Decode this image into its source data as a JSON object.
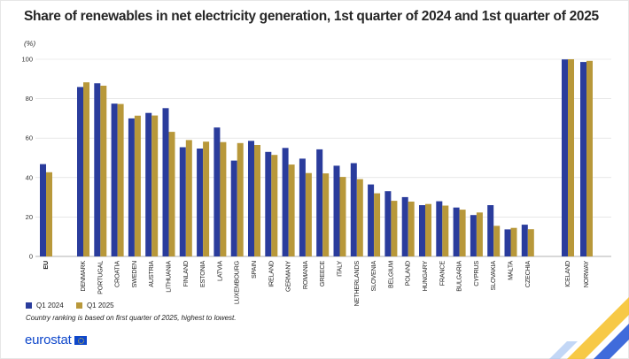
{
  "title": "Share of renewables in net electricity generation, 1st quarter of 2024 and 1st quarter of 2025",
  "unit": "(%)",
  "legend": {
    "q1_2024": "Q1 2024",
    "q1_2025": "Q1 2025"
  },
  "note": "Country ranking is based on first quarter of 2025, highest to lowest.",
  "logo": "eurostat",
  "colors": {
    "q1_2024": "#2a3c9c",
    "q1_2025": "#b8983a",
    "grid": "#d9d9d9"
  },
  "chart_data": {
    "type": "bar",
    "ylim": [
      0,
      100
    ],
    "yticks": [
      0,
      20,
      40,
      60,
      80,
      100
    ],
    "grid": true,
    "categories": [
      "EU",
      "DENMARK",
      "PORTUGAL",
      "CROATIA",
      "SWEDEN",
      "AUSTRIA",
      "LITHUANIA",
      "FINLAND",
      "ESTONIA",
      "LATVIA",
      "LUXEMBOURG",
      "SPAIN",
      "IRELAND",
      "GERMANY",
      "ROMANIA",
      "GREECE",
      "ITALY",
      "NETHERLANDS",
      "SLOVENIA",
      "BELGIUM",
      "POLAND",
      "HUNGARY",
      "FRANCE",
      "BULGARIA",
      "CYPRUS",
      "SLOVAKIA",
      "MALTA",
      "CZECHIA",
      "ICELAND",
      "NORWAY"
    ],
    "series": [
      {
        "name": "Q1 2024",
        "values": [
          46.8,
          85.9,
          87.8,
          77.5,
          70.0,
          72.8,
          75.2,
          55.4,
          54.7,
          65.4,
          48.6,
          58.6,
          53.0,
          55.0,
          49.6,
          54.3,
          46.0,
          47.3,
          36.5,
          33.1,
          30.1,
          26.0,
          28.0,
          24.8,
          21.0,
          26.0,
          13.7,
          16.1,
          99.9,
          98.6
        ]
      },
      {
        "name": "Q1 2025",
        "values": [
          42.7,
          88.3,
          86.6,
          77.3,
          71.4,
          71.5,
          63.2,
          59.0,
          58.2,
          58.0,
          57.5,
          56.5,
          51.5,
          46.6,
          42.3,
          42.1,
          40.3,
          39.2,
          32.0,
          28.2,
          27.8,
          26.6,
          25.8,
          23.7,
          22.3,
          15.5,
          14.5,
          13.8,
          100.0,
          99.2
        ]
      }
    ]
  }
}
